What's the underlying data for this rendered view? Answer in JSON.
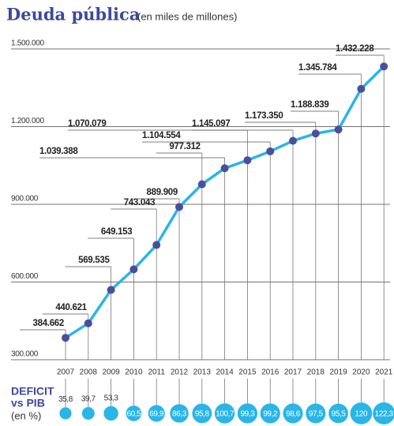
{
  "chart_data": {
    "type": "line",
    "title": "Deuda pública",
    "subtitle": "(en miles de millones)",
    "categories": [
      "2007",
      "2008",
      "2009",
      "2010",
      "2011",
      "2012",
      "2013",
      "2014",
      "2015",
      "2016",
      "2017",
      "2018",
      "2019",
      "2020",
      "2021"
    ],
    "values": [
      384662,
      440621,
      569535,
      649153,
      743043,
      889909,
      977312,
      1039388,
      1070079,
      1104554,
      1145097,
      1173350,
      1188839,
      1345784,
      1432228
    ],
    "value_labels": [
      "384.662",
      "440.621",
      "569.535",
      "649.153",
      "743.043",
      "889.909",
      "977.312",
      "1.039.388",
      "1.070.079",
      "1.104.554",
      "1.145.097",
      "1.173.350",
      "1.188.839",
      "1.345.784",
      "1.432.228"
    ],
    "color": "#29b5e8",
    "marker_color": "#4a4f9a",
    "ylim": [
      300000,
      1500000
    ],
    "yticks": [
      {
        "value": 300000,
        "label": "300.000"
      },
      {
        "value": 600000,
        "label": "600.000"
      },
      {
        "value": 900000,
        "label": "900.000"
      },
      {
        "value": 1200000,
        "label": "1.200.000"
      },
      {
        "value": 1500000,
        "label": "1.500.000"
      }
    ],
    "grid": true,
    "deficit": {
      "label_lines": [
        "DEFICIT",
        "vs PIB",
        "(en %)"
      ],
      "values": [
        35.8,
        39.7,
        53.3,
        60.5,
        69.9,
        86.3,
        95.8,
        100.7,
        99.3,
        99.2,
        98.6,
        97.5,
        95.5,
        120,
        122.3
      ],
      "value_labels": [
        "35,8",
        "39,7",
        "53,3",
        "60,5",
        "69,9",
        "86,3",
        "95,8",
        "100,7",
        "99,3",
        "99,2",
        "98,6",
        "97,5",
        "95,5",
        "120",
        "122,3"
      ],
      "color": "#29b5e8"
    }
  }
}
